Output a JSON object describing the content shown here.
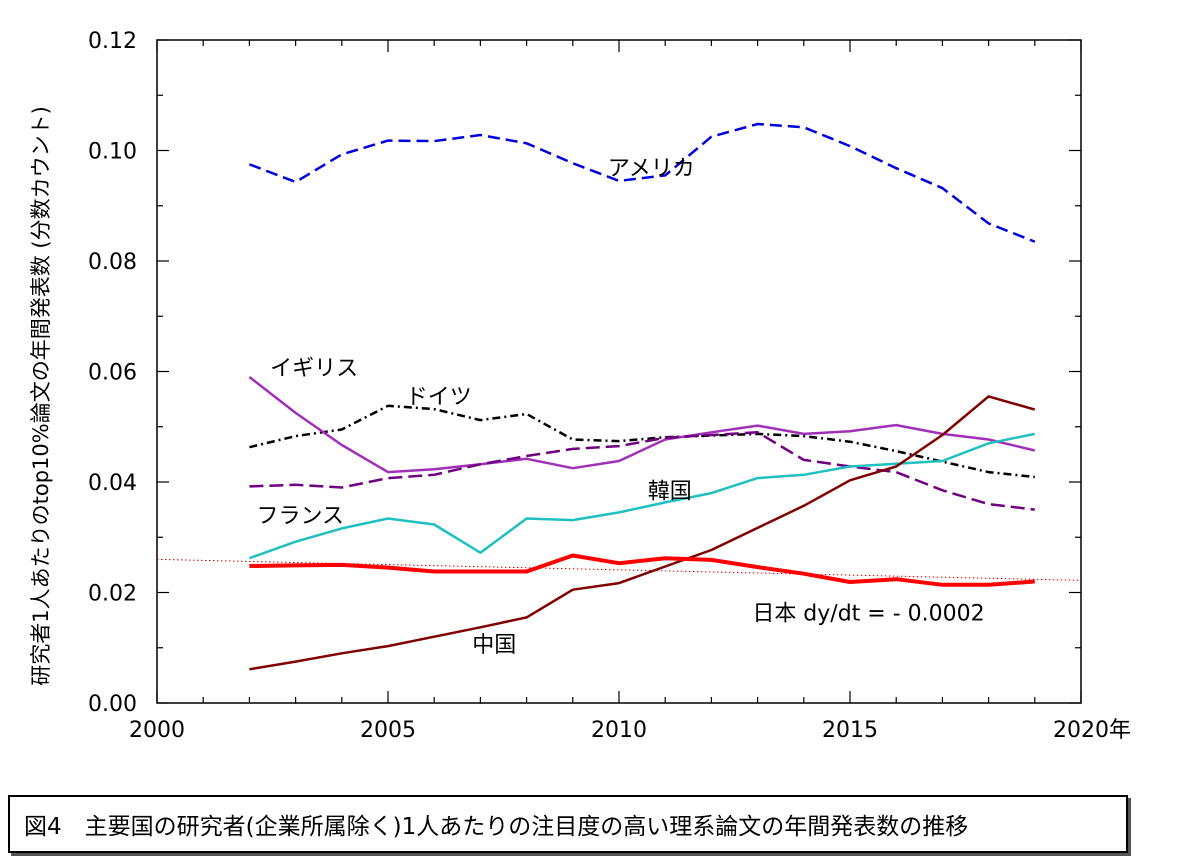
{
  "caption": "図4　主要国の研究者(企業所属除く)1人あたりの注目度の高い理系論文の年間発表数の推移",
  "chart_data": {
    "type": "line",
    "title": "",
    "xlabel": "",
    "ylabel": "研究者1人あたりのtop10%論文の年間発表数 (分数カウント)",
    "xlim": [
      2000,
      2020
    ],
    "ylim": [
      0.0,
      0.12
    ],
    "x_ticks": [
      2000,
      2005,
      2010,
      2015,
      2020
    ],
    "x_tick_labels": [
      "2000",
      "2005",
      "2010",
      "2015",
      "2020年"
    ],
    "y_ticks": [
      0.0,
      0.02,
      0.04,
      0.06,
      0.08,
      0.1,
      0.12
    ],
    "y_tick_labels": [
      "0.00",
      "0.02",
      "0.04",
      "0.06",
      "0.08",
      "0.10",
      "0.12"
    ],
    "grid": false,
    "x": [
      2002,
      2003,
      2004,
      2005,
      2006,
      2007,
      2008,
      2009,
      2010,
      2011,
      2012,
      2013,
      2014,
      2015,
      2016,
      2017,
      2018,
      2019
    ],
    "series": [
      {
        "name": "アメリカ",
        "color": "#0000dd",
        "dash": "12,6",
        "width": 2.5,
        "values": [
          0.0975,
          0.0943,
          0.0993,
          0.1018,
          0.1017,
          0.1028,
          0.1013,
          0.0977,
          0.0945,
          0.0955,
          0.1025,
          0.1048,
          0.1042,
          0.1008,
          0.0968,
          0.0932,
          0.0868,
          0.0835
        ]
      },
      {
        "name": "ドイツ",
        "color": "#000000",
        "dash": "8,4,2,4",
        "width": 2.5,
        "values": [
          0.0463,
          0.0483,
          0.0495,
          0.0538,
          0.0532,
          0.0512,
          0.0523,
          0.0477,
          0.0474,
          0.0481,
          0.0484,
          0.0487,
          0.0483,
          0.0473,
          0.0456,
          0.0437,
          0.0418,
          0.0409
        ]
      },
      {
        "name": "イギリス",
        "color": "#a030b8",
        "dash": "",
        "width": 2.5,
        "values": [
          0.059,
          0.0525,
          0.0467,
          0.0418,
          0.0423,
          0.0432,
          0.0442,
          0.0425,
          0.0438,
          0.0477,
          0.049,
          0.0502,
          0.0487,
          0.0492,
          0.0503,
          0.0487,
          0.0477,
          0.0457
        ]
      },
      {
        "name": "フランス",
        "color": "#700080",
        "dash": "14,6",
        "width": 2.5,
        "values": [
          0.0392,
          0.0395,
          0.039,
          0.0407,
          0.0413,
          0.0432,
          0.0447,
          0.046,
          0.0465,
          0.048,
          0.0485,
          0.049,
          0.044,
          0.0428,
          0.0418,
          0.0385,
          0.036,
          0.035
        ]
      },
      {
        "name": "韓国",
        "color": "#20c0c0",
        "dash": "",
        "width": 2.5,
        "values": [
          0.0262,
          0.0292,
          0.0316,
          0.0334,
          0.0323,
          0.0272,
          0.0334,
          0.0331,
          0.0345,
          0.0363,
          0.038,
          0.0407,
          0.0413,
          0.0428,
          0.0433,
          0.0438,
          0.047,
          0.0487
        ]
      },
      {
        "name": "中国",
        "color": "#800000",
        "dash": "",
        "width": 2.5,
        "values": [
          0.0061,
          0.0075,
          0.009,
          0.0103,
          0.012,
          0.0137,
          0.0155,
          0.0205,
          0.0217,
          0.0247,
          0.0277,
          0.0317,
          0.0357,
          0.0403,
          0.0428,
          0.0485,
          0.0555,
          0.0531
        ]
      },
      {
        "name": "日本",
        "color": "#ff0000",
        "dash": "",
        "width": 4,
        "values": [
          0.0248,
          0.0249,
          0.025,
          0.0245,
          0.0238,
          0.0238,
          0.0238,
          0.0267,
          0.0253,
          0.0262,
          0.0259,
          0.0246,
          0.0234,
          0.0219,
          0.0224,
          0.0214,
          0.0214,
          0.022
        ]
      }
    ],
    "trend": {
      "label": "dy/dt = - 0.0002",
      "color": "#cc0000",
      "x": [
        2000,
        2020
      ],
      "values": [
        0.026,
        0.0222
      ]
    },
    "labels": [
      {
        "text": "アメリカ",
        "x": 2010.7,
        "y": 0.0969
      },
      {
        "text": "ドイツ",
        "x": 2006.1,
        "y": 0.0556
      },
      {
        "text": "イギリス",
        "x": 2003.4,
        "y": 0.0607
      },
      {
        "text": "フランス",
        "x": 2003.1,
        "y": 0.034
      },
      {
        "text": "韓国",
        "x": 2011.1,
        "y": 0.0385
      },
      {
        "text": "中国",
        "x": 2007.3,
        "y": 0.0107
      },
      {
        "text": "日本 dy/dt = - 0.0002",
        "x": 2015.4,
        "y": 0.0164
      }
    ]
  }
}
